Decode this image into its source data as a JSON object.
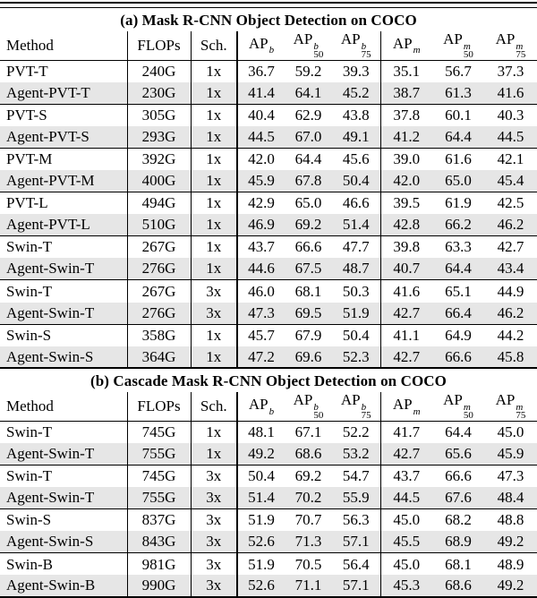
{
  "meta": {
    "background": "#ffffff",
    "stripe_color": "#e6e6e6",
    "rule_color": "#000000",
    "text_color": "#000000"
  },
  "tables": [
    {
      "name": "table-a-mask-rcnn",
      "title": "(a) Mask R-CNN Object Detection on COCO",
      "headers": {
        "method": "Method",
        "flops": "FLOPs",
        "sch": "Sch.",
        "ap_cols": [
          {
            "base": "AP",
            "sup": "b",
            "sub": ""
          },
          {
            "base": "AP",
            "sup": "b",
            "sub": "50"
          },
          {
            "base": "AP",
            "sup": "b",
            "sub": "75"
          },
          {
            "base": "AP",
            "sup": "m",
            "sub": ""
          },
          {
            "base": "AP",
            "sup": "m",
            "sub": "50"
          },
          {
            "base": "AP",
            "sup": "m",
            "sub": "75"
          }
        ]
      },
      "groups": [
        {
          "rows": [
            {
              "method": "PVT-T",
              "flops": "240G",
              "sch": "1x",
              "vals": [
                "36.7",
                "59.2",
                "39.3",
                "35.1",
                "56.7",
                "37.3"
              ],
              "shaded": false
            },
            {
              "method": "Agent-PVT-T",
              "flops": "230G",
              "sch": "1x",
              "vals": [
                "41.4",
                "64.1",
                "45.2",
                "38.7",
                "61.3",
                "41.6"
              ],
              "shaded": true
            }
          ]
        },
        {
          "rows": [
            {
              "method": "PVT-S",
              "flops": "305G",
              "sch": "1x",
              "vals": [
                "40.4",
                "62.9",
                "43.8",
                "37.8",
                "60.1",
                "40.3"
              ],
              "shaded": false
            },
            {
              "method": "Agent-PVT-S",
              "flops": "293G",
              "sch": "1x",
              "vals": [
                "44.5",
                "67.0",
                "49.1",
                "41.2",
                "64.4",
                "44.5"
              ],
              "shaded": true
            }
          ]
        },
        {
          "rows": [
            {
              "method": "PVT-M",
              "flops": "392G",
              "sch": "1x",
              "vals": [
                "42.0",
                "64.4",
                "45.6",
                "39.0",
                "61.6",
                "42.1"
              ],
              "shaded": false
            },
            {
              "method": "Agent-PVT-M",
              "flops": "400G",
              "sch": "1x",
              "vals": [
                "45.9",
                "67.8",
                "50.4",
                "42.0",
                "65.0",
                "45.4"
              ],
              "shaded": true
            }
          ]
        },
        {
          "rows": [
            {
              "method": "PVT-L",
              "flops": "494G",
              "sch": "1x",
              "vals": [
                "42.9",
                "65.0",
                "46.6",
                "39.5",
                "61.9",
                "42.5"
              ],
              "shaded": false
            },
            {
              "method": "Agent-PVT-L",
              "flops": "510G",
              "sch": "1x",
              "vals": [
                "46.9",
                "69.2",
                "51.4",
                "42.8",
                "66.2",
                "46.2"
              ],
              "shaded": true
            }
          ]
        },
        {
          "rows": [
            {
              "method": "Swin-T",
              "flops": "267G",
              "sch": "1x",
              "vals": [
                "43.7",
                "66.6",
                "47.7",
                "39.8",
                "63.3",
                "42.7"
              ],
              "shaded": false
            },
            {
              "method": "Agent-Swin-T",
              "flops": "276G",
              "sch": "1x",
              "vals": [
                "44.6",
                "67.5",
                "48.7",
                "40.7",
                "64.4",
                "43.4"
              ],
              "shaded": true
            }
          ]
        },
        {
          "rows": [
            {
              "method": "Swin-T",
              "flops": "267G",
              "sch": "3x",
              "vals": [
                "46.0",
                "68.1",
                "50.3",
                "41.6",
                "65.1",
                "44.9"
              ],
              "shaded": false
            },
            {
              "method": "Agent-Swin-T",
              "flops": "276G",
              "sch": "3x",
              "vals": [
                "47.3",
                "69.5",
                "51.9",
                "42.7",
                "66.4",
                "46.2"
              ],
              "shaded": true
            }
          ]
        },
        {
          "rows": [
            {
              "method": "Swin-S",
              "flops": "358G",
              "sch": "1x",
              "vals": [
                "45.7",
                "67.9",
                "50.4",
                "41.1",
                "64.9",
                "44.2"
              ],
              "shaded": false
            },
            {
              "method": "Agent-Swin-S",
              "flops": "364G",
              "sch": "1x",
              "vals": [
                "47.2",
                "69.6",
                "52.3",
                "42.7",
                "66.6",
                "45.8"
              ],
              "shaded": true
            }
          ]
        }
      ]
    },
    {
      "name": "table-b-cascade-mask-rcnn",
      "title": "(b) Cascade Mask R-CNN Object Detection on COCO",
      "headers": {
        "method": "Method",
        "flops": "FLOPs",
        "sch": "Sch.",
        "ap_cols": [
          {
            "base": "AP",
            "sup": "b",
            "sub": ""
          },
          {
            "base": "AP",
            "sup": "b",
            "sub": "50"
          },
          {
            "base": "AP",
            "sup": "b",
            "sub": "75"
          },
          {
            "base": "AP",
            "sup": "m",
            "sub": ""
          },
          {
            "base": "AP",
            "sup": "m",
            "sub": "50"
          },
          {
            "base": "AP",
            "sup": "m",
            "sub": "75"
          }
        ]
      },
      "groups": [
        {
          "rows": [
            {
              "method": "Swin-T",
              "flops": "745G",
              "sch": "1x",
              "vals": [
                "48.1",
                "67.1",
                "52.2",
                "41.7",
                "64.4",
                "45.0"
              ],
              "shaded": false
            },
            {
              "method": "Agent-Swin-T",
              "flops": "755G",
              "sch": "1x",
              "vals": [
                "49.2",
                "68.6",
                "53.2",
                "42.7",
                "65.6",
                "45.9"
              ],
              "shaded": true
            }
          ]
        },
        {
          "rows": [
            {
              "method": "Swin-T",
              "flops": "745G",
              "sch": "3x",
              "vals": [
                "50.4",
                "69.2",
                "54.7",
                "43.7",
                "66.6",
                "47.3"
              ],
              "shaded": false
            },
            {
              "method": "Agent-Swin-T",
              "flops": "755G",
              "sch": "3x",
              "vals": [
                "51.4",
                "70.2",
                "55.9",
                "44.5",
                "67.6",
                "48.4"
              ],
              "shaded": true
            }
          ]
        },
        {
          "rows": [
            {
              "method": "Swin-S",
              "flops": "837G",
              "sch": "3x",
              "vals": [
                "51.9",
                "70.7",
                "56.3",
                "45.0",
                "68.2",
                "48.8"
              ],
              "shaded": false
            },
            {
              "method": "Agent-Swin-S",
              "flops": "843G",
              "sch": "3x",
              "vals": [
                "52.6",
                "71.3",
                "57.1",
                "45.5",
                "68.9",
                "49.2"
              ],
              "shaded": true
            }
          ]
        },
        {
          "rows": [
            {
              "method": "Swin-B",
              "flops": "981G",
              "sch": "3x",
              "vals": [
                "51.9",
                "70.5",
                "56.4",
                "45.0",
                "68.1",
                "48.9"
              ],
              "shaded": false
            },
            {
              "method": "Agent-Swin-B",
              "flops": "990G",
              "sch": "3x",
              "vals": [
                "52.6",
                "71.1",
                "57.1",
                "45.3",
                "68.6",
                "49.2"
              ],
              "shaded": true
            }
          ]
        }
      ]
    }
  ]
}
